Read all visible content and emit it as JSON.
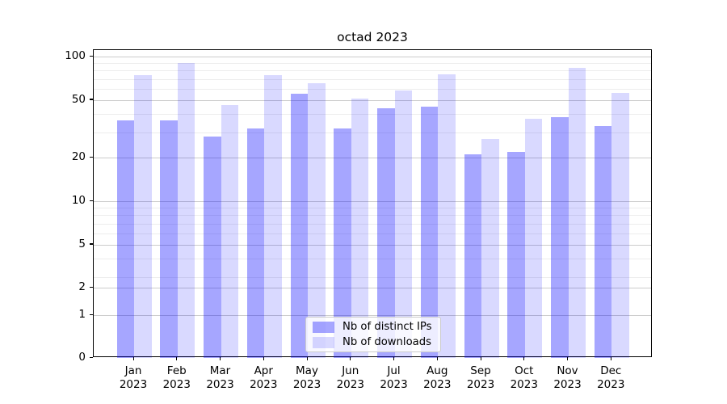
{
  "title": "octad 2023",
  "chart_data": {
    "type": "bar",
    "title": "octad 2023",
    "categories": [
      "Jan 2023",
      "Feb 2023",
      "Mar 2023",
      "Apr 2023",
      "May 2023",
      "Jun 2023",
      "Jul 2023",
      "Aug 2023",
      "Sep 2023",
      "Oct 2023",
      "Nov 2023",
      "Dec 2023"
    ],
    "series": [
      {
        "name": "Nb of distinct IPs",
        "color": "rgba(0,0,255,0.35)",
        "color_hex_on_white": "#A6A6FF",
        "values": [
          36,
          36,
          28,
          32,
          55,
          32,
          44,
          45,
          21,
          22,
          38,
          33
        ]
      },
      {
        "name": "Nb of downloads",
        "color": "rgba(0,0,255,0.15)",
        "color_hex_on_white": "#D9D9FF",
        "values": [
          74,
          90,
          46,
          74,
          65,
          51,
          58,
          75,
          27,
          37,
          83,
          56
        ]
      }
    ],
    "xlabel": "",
    "ylabel": "",
    "yscale": "log-like with linear tail to 0",
    "y_ticks": [
      0,
      1,
      2,
      5,
      10,
      20,
      50,
      100
    ],
    "y_minor_gridlines": [
      3,
      4,
      6,
      7,
      8,
      9,
      30,
      40,
      60,
      70,
      80,
      90
    ],
    "ylim": [
      0,
      110
    ],
    "grid": "horizontal major and minor",
    "legend_position": "lower center",
    "colors": {
      "grid_major": "#CCCCCC",
      "grid_minor": "#EDEDED",
      "spine": "#000000",
      "text": "#000000",
      "background": "#FFFFFF"
    }
  }
}
